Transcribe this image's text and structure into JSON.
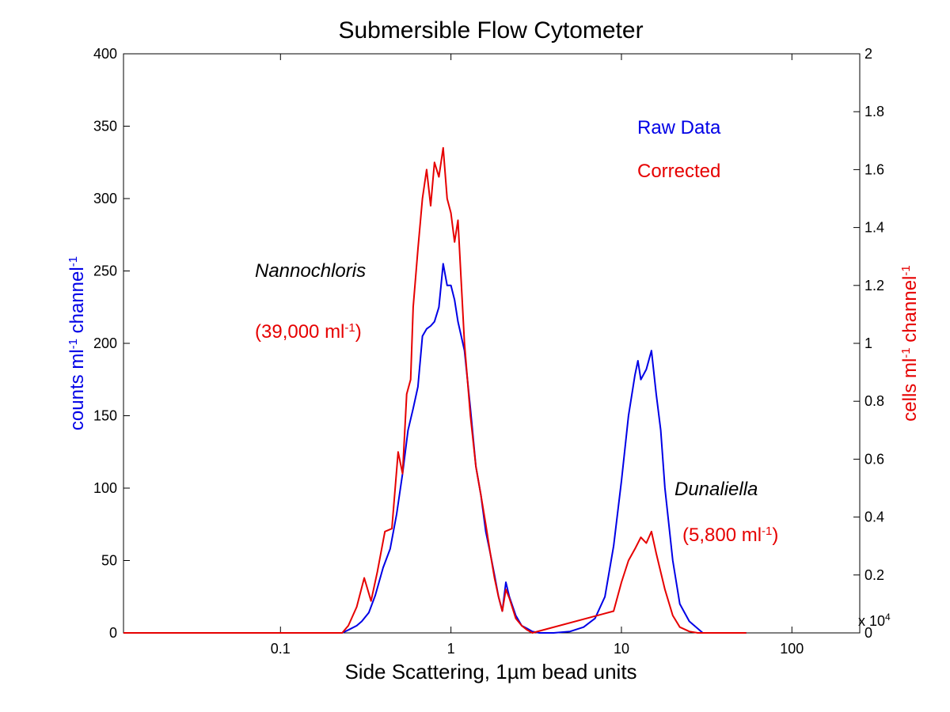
{
  "chart_data": {
    "type": "line",
    "title": "Submersible Flow Cytometer",
    "xlabel": {
      "pre": "Side Scattering, 1",
      "mu": "µ",
      "post": "m bead units"
    },
    "x_scale": "log",
    "xlim": [
      0.012,
      250
    ],
    "x_ticks": [
      0.1,
      1,
      10,
      100
    ],
    "x_tick_labels": [
      "0.1",
      "1",
      "10",
      "100"
    ],
    "ylabel_left": {
      "a": "counts ml",
      "sup1": "-1",
      "b": " channel",
      "sup2": "-1"
    },
    "ylim_left": [
      0,
      400
    ],
    "y_ticks_left": [
      0,
      50,
      100,
      150,
      200,
      250,
      300,
      350,
      400
    ],
    "ylabel_right": {
      "a": "cells ml",
      "sup1": "-1",
      "b": " channel",
      "sup2": "-1"
    },
    "ylim_right": [
      0,
      2
    ],
    "y_ticks_right": [
      "0",
      "0.2",
      "0.4",
      "0.6",
      "0.8",
      "1",
      "1.2",
      "1.4",
      "1.6",
      "1.8",
      "2"
    ],
    "right_multiplier": {
      "base": "x 10",
      "exp": "4"
    },
    "colors": {
      "raw": "#0000e6",
      "corrected": "#e60000",
      "axis": "#000000"
    },
    "series": [
      {
        "name": "Raw Data",
        "axis": "left",
        "color": "#0000e6",
        "points": [
          [
            0.012,
            0
          ],
          [
            0.23,
            0
          ],
          [
            0.25,
            2
          ],
          [
            0.28,
            5
          ],
          [
            0.3,
            8
          ],
          [
            0.33,
            14
          ],
          [
            0.36,
            26
          ],
          [
            0.4,
            45
          ],
          [
            0.44,
            58
          ],
          [
            0.48,
            82
          ],
          [
            0.52,
            110
          ],
          [
            0.56,
            140
          ],
          [
            0.6,
            155
          ],
          [
            0.64,
            170
          ],
          [
            0.68,
            205
          ],
          [
            0.72,
            210
          ],
          [
            0.76,
            212
          ],
          [
            0.8,
            215
          ],
          [
            0.85,
            225
          ],
          [
            0.9,
            255
          ],
          [
            0.95,
            240
          ],
          [
            1.0,
            240
          ],
          [
            1.05,
            230
          ],
          [
            1.1,
            215
          ],
          [
            1.2,
            195
          ],
          [
            1.3,
            155
          ],
          [
            1.4,
            115
          ],
          [
            1.5,
            95
          ],
          [
            1.6,
            70
          ],
          [
            1.7,
            55
          ],
          [
            1.8,
            40
          ],
          [
            1.9,
            25
          ],
          [
            2.0,
            15
          ],
          [
            2.1,
            35
          ],
          [
            2.2,
            25
          ],
          [
            2.4,
            12
          ],
          [
            2.6,
            5
          ],
          [
            2.8,
            3
          ],
          [
            3.0,
            1
          ],
          [
            3.3,
            0
          ],
          [
            4.0,
            0
          ],
          [
            5.0,
            1
          ],
          [
            6.0,
            4
          ],
          [
            7.0,
            10
          ],
          [
            8.0,
            25
          ],
          [
            9.0,
            60
          ],
          [
            10.0,
            105
          ],
          [
            11.0,
            150
          ],
          [
            12.0,
            178
          ],
          [
            12.5,
            188
          ],
          [
            13.0,
            175
          ],
          [
            14.0,
            182
          ],
          [
            15.0,
            195
          ],
          [
            16.0,
            165
          ],
          [
            17.0,
            140
          ],
          [
            18.0,
            100
          ],
          [
            20.0,
            50
          ],
          [
            22.0,
            20
          ],
          [
            25.0,
            8
          ],
          [
            28.0,
            3
          ],
          [
            30.0,
            0
          ],
          [
            54,
            0
          ]
        ]
      },
      {
        "name": "Corrected",
        "axis": "left",
        "color": "#e60000",
        "points": [
          [
            0.012,
            0
          ],
          [
            0.23,
            0
          ],
          [
            0.25,
            5
          ],
          [
            0.28,
            18
          ],
          [
            0.31,
            38
          ],
          [
            0.34,
            22
          ],
          [
            0.37,
            42
          ],
          [
            0.41,
            70
          ],
          [
            0.45,
            72
          ],
          [
            0.49,
            125
          ],
          [
            0.52,
            110
          ],
          [
            0.55,
            165
          ],
          [
            0.58,
            175
          ],
          [
            0.6,
            225
          ],
          [
            0.64,
            265
          ],
          [
            0.68,
            300
          ],
          [
            0.72,
            320
          ],
          [
            0.76,
            295
          ],
          [
            0.8,
            325
          ],
          [
            0.85,
            315
          ],
          [
            0.9,
            335
          ],
          [
            0.95,
            300
          ],
          [
            1.0,
            290
          ],
          [
            1.05,
            270
          ],
          [
            1.1,
            285
          ],
          [
            1.2,
            200
          ],
          [
            1.3,
            150
          ],
          [
            1.4,
            115
          ],
          [
            1.5,
            95
          ],
          [
            1.6,
            75
          ],
          [
            1.7,
            55
          ],
          [
            1.8,
            38
          ],
          [
            1.9,
            25
          ],
          [
            2.0,
            15
          ],
          [
            2.1,
            30
          ],
          [
            2.2,
            24
          ],
          [
            2.4,
            10
          ],
          [
            2.6,
            5
          ],
          [
            2.8,
            2
          ],
          [
            3.0,
            0
          ],
          [
            9.0,
            15
          ],
          [
            10.0,
            35
          ],
          [
            11.0,
            50
          ],
          [
            12.0,
            58
          ],
          [
            13.0,
            66
          ],
          [
            14.0,
            62
          ],
          [
            15.0,
            70
          ],
          [
            16.0,
            55
          ],
          [
            17.0,
            42
          ],
          [
            18.0,
            30
          ],
          [
            20.0,
            12
          ],
          [
            22.0,
            4
          ],
          [
            25.0,
            1
          ],
          [
            28.0,
            0
          ],
          [
            54,
            0
          ]
        ]
      }
    ],
    "legend": [
      "Raw Data",
      "Corrected"
    ],
    "legend_position": "top-right",
    "annotations": [
      {
        "name": "Nannochloris",
        "count": {
          "a": "(39,000 ml",
          "sup": "-1",
          "b": ")"
        }
      },
      {
        "name": "Dunaliella",
        "count": {
          "a": "(5,800 ml",
          "sup": "-1",
          "b": ")"
        }
      }
    ],
    "grid": false
  }
}
